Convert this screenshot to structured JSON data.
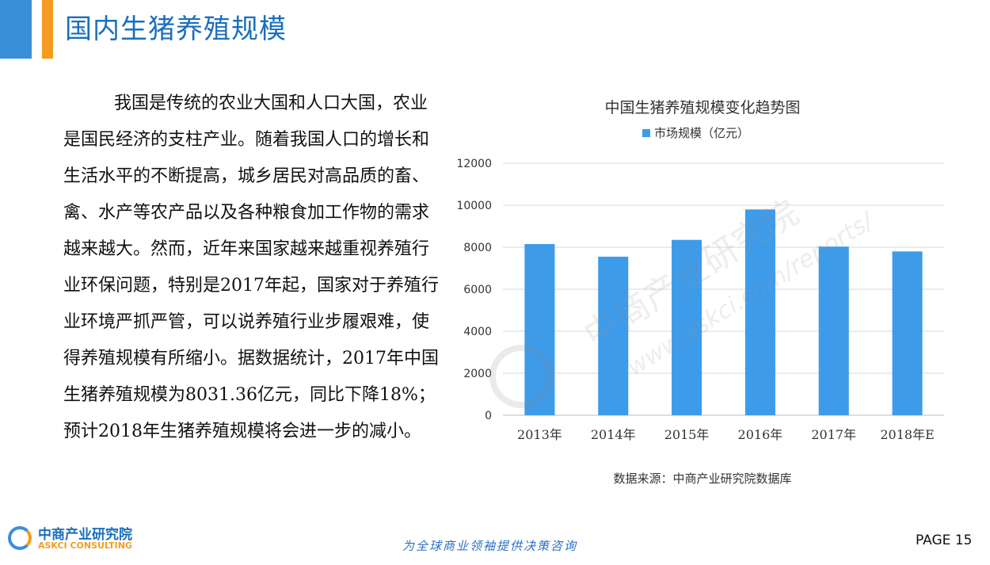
{
  "header": {
    "title": "国内生猪养殖规模"
  },
  "body_text": "我国是传统的农业大国和人口大国，农业是国民经济的支柱产业。随着我国人口的增长和生活水平的不断提高，城乡居民对高品质的畜、禽、水产等农产品以及各种粮食加工作物的需求越来越大。然而，近年来国家越来越重视养殖行业环保问题，特别是2017年起，国家对于养殖行业环境严抓严管，可以说养殖行业步履艰难，使得养殖规模有所缩小。据数据统计，2017年中国生猪养殖规模为8031.36亿元，同比下降18%；预计2018年生猪养殖规模将会进一步的减小。",
  "chart_data": {
    "type": "bar",
    "title": "中国生猪养殖规模变化趋势图",
    "categories": [
      "2013年",
      "2014年",
      "2015年",
      "2016年",
      "2017年",
      "2018年E"
    ],
    "series": [
      {
        "name": "市场规模（亿元）",
        "values": [
          8150,
          7550,
          8350,
          9800,
          8031.36,
          7800
        ]
      }
    ],
    "ylim": [
      0,
      12000
    ],
    "yticks": [
      0,
      2000,
      4000,
      6000,
      8000,
      10000,
      12000
    ],
    "grid": true,
    "legend_position": "top",
    "bar_color": "#3d9be9",
    "source": "数据来源：中商产业研究院数据库"
  },
  "watermark": {
    "cn": "中商产业研究院",
    "url": "www.askci.com/reports/"
  },
  "footer": {
    "logo_cn": "中商产业研究院",
    "logo_en": "ASKCI CONSULTING",
    "slogan": "为全球商业领袖提供决策咨询",
    "page": "PAGE  15"
  },
  "colors": {
    "accent_blue": "#3a8fd9",
    "accent_orange": "#f39c1f",
    "title_blue": "#1a6fbd"
  }
}
